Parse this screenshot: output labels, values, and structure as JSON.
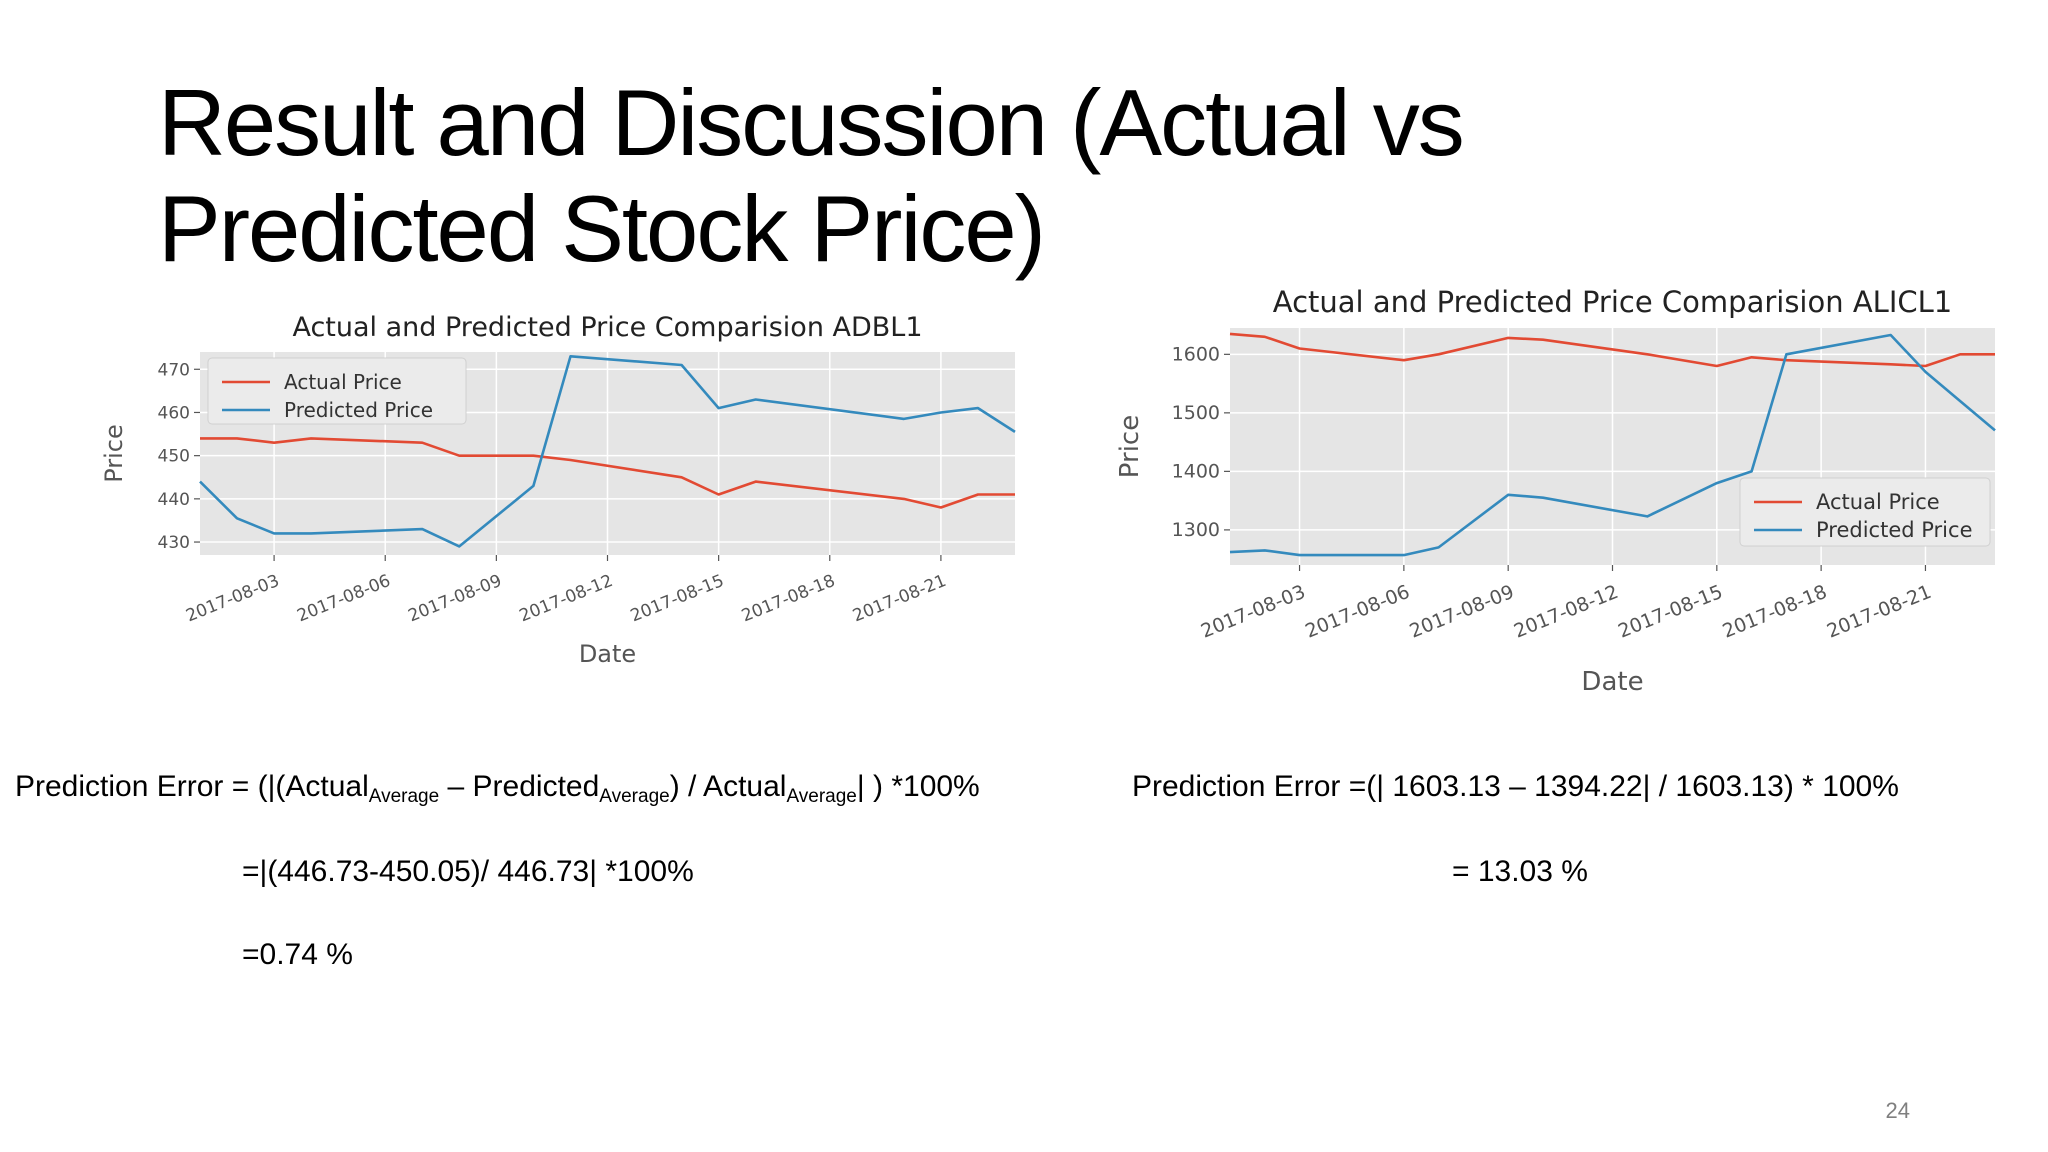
{
  "slide": {
    "title": "Result and Discussion (Actual vs Predicted Stock Price)",
    "page_number": "24"
  },
  "formulas": {
    "left": {
      "line1": {
        "prefix": "Prediction Error =  (|(Actual",
        "sub1": "Average",
        "mid1": " – Predicted",
        "sub2": "Average",
        "mid2": ") / Actual",
        "sub3": "Average",
        "suffix": "| ) *100%"
      },
      "line2": "=|(446.73-450.05)/ 446.73|  *100%",
      "line3": "=0.74 %"
    },
    "right": {
      "line1": "Prediction Error =(| 1603.13 – 1394.22| / 1603.13) * 100%",
      "line2": "= 13.03 %"
    }
  },
  "chart_data": [
    {
      "type": "line",
      "title": "Actual and Predicted Price Comparision ADBL1",
      "xlabel": "Date",
      "ylabel": "Price",
      "x": [
        "2017-08-01",
        "2017-08-02",
        "2017-08-03",
        "2017-08-04",
        "2017-08-07",
        "2017-08-08",
        "2017-08-10",
        "2017-08-11",
        "2017-08-14",
        "2017-08-15",
        "2017-08-16",
        "2017-08-20",
        "2017-08-21",
        "2017-08-22",
        "2017-08-23"
      ],
      "xticks": [
        "2017-08-03",
        "2017-08-06",
        "2017-08-09",
        "2017-08-12",
        "2017-08-15",
        "2017-08-18",
        "2017-08-21"
      ],
      "xlim": [
        "2017-08-01",
        "2017-08-23"
      ],
      "ylim": [
        427,
        474
      ],
      "yticks": [
        430,
        440,
        450,
        460,
        470
      ],
      "series": [
        {
          "name": "Actual Price",
          "color": "#e24a33",
          "values": [
            454,
            454,
            453,
            454,
            453,
            450,
            450,
            449,
            445,
            441,
            444,
            440,
            438,
            441,
            441
          ]
        },
        {
          "name": "Predicted Price",
          "color": "#348abd",
          "values": [
            444,
            435.5,
            432,
            432,
            433,
            429,
            443,
            473,
            471,
            461,
            463,
            458.5,
            460,
            461,
            455.5
          ]
        }
      ],
      "legend": "upper-left",
      "grid": true
    },
    {
      "type": "line",
      "title": "Actual and Predicted Price Comparision ALICL1",
      "xlabel": "Date",
      "ylabel": "Price",
      "x": [
        "2017-08-01",
        "2017-08-02",
        "2017-08-03",
        "2017-08-06",
        "2017-08-07",
        "2017-08-09",
        "2017-08-10",
        "2017-08-13",
        "2017-08-15",
        "2017-08-16",
        "2017-08-17",
        "2017-08-20",
        "2017-08-21",
        "2017-08-22",
        "2017-08-23"
      ],
      "xticks": [
        "2017-08-03",
        "2017-08-06",
        "2017-08-09",
        "2017-08-12",
        "2017-08-15",
        "2017-08-18",
        "2017-08-21"
      ],
      "xlim": [
        "2017-08-01",
        "2017-08-23"
      ],
      "ylim": [
        1240,
        1645
      ],
      "yticks": [
        1300,
        1400,
        1500,
        1600
      ],
      "series": [
        {
          "name": "Actual Price",
          "color": "#e24a33",
          "values": [
            1635,
            1630,
            1610,
            1590,
            1600,
            1628,
            1625,
            1600,
            1580,
            1595,
            1590,
            1583,
            1580,
            1600,
            1600
          ]
        },
        {
          "name": "Predicted Price",
          "color": "#348abd",
          "values": [
            1262,
            1265,
            1257,
            1257,
            1270,
            1360,
            1355,
            1323,
            1380,
            1400,
            1600,
            1633,
            1570,
            1520,
            1470
          ]
        }
      ],
      "legend": "lower-right",
      "grid": true
    }
  ]
}
